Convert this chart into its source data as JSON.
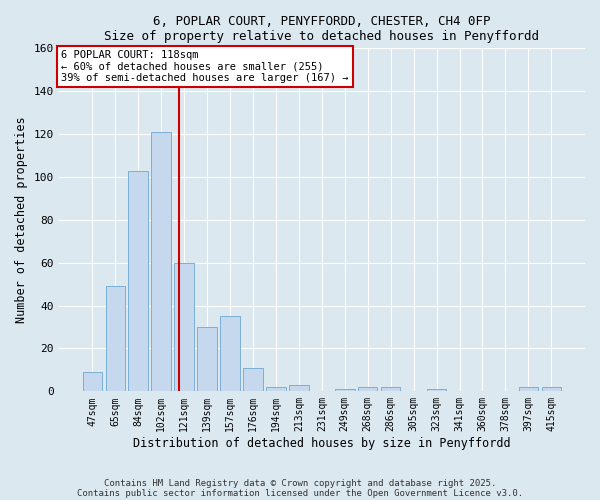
{
  "title1": "6, POPLAR COURT, PENYFFORDD, CHESTER, CH4 0FP",
  "title2": "Size of property relative to detached houses in Penyffordd",
  "xlabel": "Distribution of detached houses by size in Penyffordd",
  "ylabel": "Number of detached properties",
  "bins": [
    "47sqm",
    "65sqm",
    "84sqm",
    "102sqm",
    "121sqm",
    "139sqm",
    "157sqm",
    "176sqm",
    "194sqm",
    "213sqm",
    "231sqm",
    "249sqm",
    "268sqm",
    "286sqm",
    "305sqm",
    "323sqm",
    "341sqm",
    "360sqm",
    "378sqm",
    "397sqm",
    "415sqm"
  ],
  "values": [
    9,
    49,
    103,
    121,
    60,
    30,
    35,
    11,
    2,
    3,
    0,
    1,
    2,
    2,
    0,
    1,
    0,
    0,
    0,
    2,
    2
  ],
  "bar_color": "#c5d8ed",
  "bar_edge_color": "#7aafd4",
  "vline_x_index": 3.78,
  "vline_color": "#cc0000",
  "annotation_title": "6 POPLAR COURT: 118sqm",
  "annotation_line1": "← 60% of detached houses are smaller (255)",
  "annotation_line2": "39% of semi-detached houses are larger (167) →",
  "annotation_box_color": "#ffffff",
  "annotation_box_edge_color": "#cc0000",
  "ylim": [
    0,
    160
  ],
  "yticks": [
    0,
    20,
    40,
    60,
    80,
    100,
    120,
    140,
    160
  ],
  "plot_bg_color": "#dce8f0",
  "fig_bg_color": "#dce8f0",
  "footer1": "Contains HM Land Registry data © Crown copyright and database right 2025.",
  "footer2": "Contains public sector information licensed under the Open Government Licence v3.0."
}
